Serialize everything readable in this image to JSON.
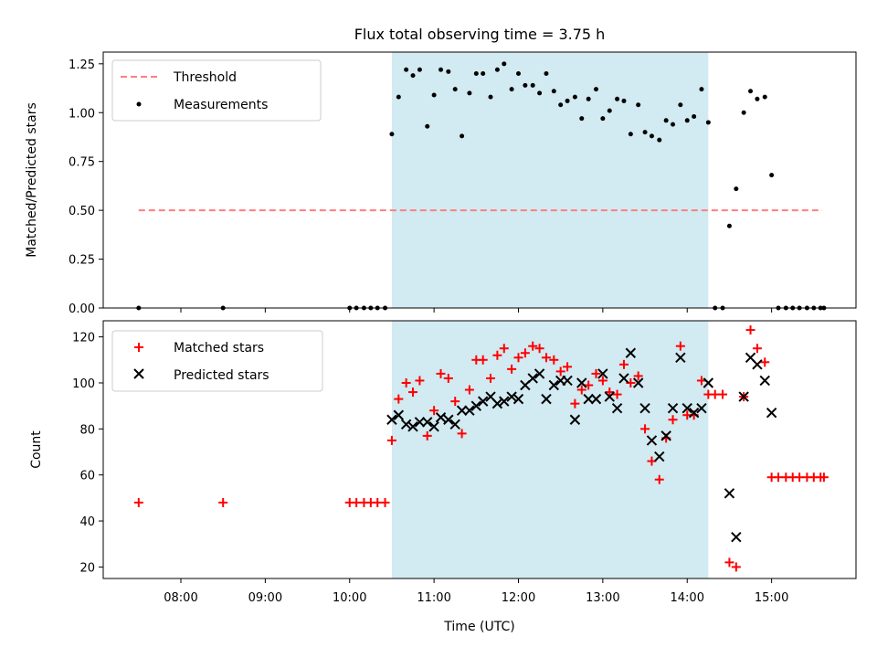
{
  "figure": {
    "title": "Flux total observing time = 3.75 h"
  },
  "colors": {
    "threshold": "#ff7f7f",
    "measurement": "#000000",
    "matched": "#ff0000",
    "predicted": "#000000",
    "span": "#add8e6"
  },
  "chart_data": [
    {
      "type": "scatter",
      "ylabel": "Matched/Predicted stars",
      "xlim": [
        7.08,
        16.0
      ],
      "ylim": [
        0,
        1.31
      ],
      "yticks": [
        0.0,
        0.25,
        0.5,
        0.75,
        1.0,
        1.25
      ],
      "ytick_labels": [
        "0.00",
        "0.25",
        "0.50",
        "0.75",
        "1.00",
        "1.25"
      ],
      "highlight_span": [
        10.5,
        14.25
      ],
      "legend": {
        "position": "top-left",
        "entries": [
          "Threshold",
          "Measurements"
        ]
      },
      "threshold": {
        "name": "Threshold",
        "y": 0.5,
        "x": [
          7.5,
          15.6
        ]
      },
      "series": [
        {
          "name": "Measurements",
          "marker": "dot",
          "x": [
            7.5,
            8.5,
            10.0,
            10.08,
            10.17,
            10.25,
            10.33,
            10.42,
            10.5,
            10.58,
            10.67,
            10.75,
            10.83,
            10.92,
            11.0,
            11.08,
            11.17,
            11.25,
            11.33,
            11.42,
            11.5,
            11.58,
            11.67,
            11.75,
            11.83,
            11.92,
            12.0,
            12.08,
            12.17,
            12.25,
            12.33,
            12.42,
            12.5,
            12.58,
            12.67,
            12.75,
            12.83,
            12.92,
            13.0,
            13.08,
            13.17,
            13.25,
            13.33,
            13.42,
            13.5,
            13.58,
            13.67,
            13.75,
            13.83,
            13.92,
            14.0,
            14.08,
            14.17,
            14.25,
            14.33,
            14.42,
            14.5,
            14.58,
            14.67,
            14.75,
            14.83,
            14.92,
            15.0,
            15.08,
            15.17,
            15.25,
            15.33,
            15.42,
            15.5,
            15.58,
            15.62
          ],
          "y": [
            0.0,
            0.0,
            0.0,
            0.0,
            0.0,
            0.0,
            0.0,
            0.0,
            0.89,
            1.08,
            1.22,
            1.19,
            1.22,
            0.93,
            1.09,
            1.22,
            1.21,
            1.12,
            0.88,
            1.1,
            1.2,
            1.2,
            1.08,
            1.22,
            1.25,
            1.12,
            1.2,
            1.14,
            1.14,
            1.1,
            1.2,
            1.11,
            1.04,
            1.06,
            1.08,
            0.97,
            1.07,
            1.12,
            0.97,
            1.01,
            1.07,
            1.06,
            0.89,
            1.04,
            0.9,
            0.88,
            0.86,
            0.96,
            0.94,
            1.04,
            0.96,
            0.98,
            1.12,
            0.95,
            0.0,
            0.0,
            0.42,
            0.61,
            1.0,
            1.11,
            1.07,
            1.08,
            0.68,
            0.0,
            0.0,
            0.0,
            0.0,
            0.0,
            0.0,
            0.0,
            0.0
          ]
        }
      ]
    },
    {
      "type": "scatter",
      "xlabel": "Time (UTC)",
      "ylabel": "Count",
      "xlim": [
        7.08,
        16.0
      ],
      "ylim": [
        15,
        127
      ],
      "xticks": [
        8,
        9,
        10,
        11,
        12,
        13,
        14,
        15
      ],
      "xtick_labels": [
        "08:00",
        "09:00",
        "10:00",
        "11:00",
        "12:00",
        "13:00",
        "14:00",
        "15:00"
      ],
      "yticks": [
        20,
        40,
        60,
        80,
        100,
        120
      ],
      "ytick_labels": [
        "20",
        "40",
        "60",
        "80",
        "100",
        "120"
      ],
      "highlight_span": [
        10.5,
        14.25
      ],
      "legend": {
        "position": "top-left",
        "entries": [
          "Matched stars",
          "Predicted stars"
        ]
      },
      "series": [
        {
          "name": "Matched stars",
          "marker": "plus",
          "x": [
            7.5,
            8.5,
            10.0,
            10.08,
            10.17,
            10.25,
            10.33,
            10.42,
            10.5,
            10.58,
            10.67,
            10.75,
            10.83,
            10.92,
            11.0,
            11.08,
            11.17,
            11.25,
            11.33,
            11.42,
            11.5,
            11.58,
            11.67,
            11.75,
            11.83,
            11.92,
            12.0,
            12.08,
            12.17,
            12.25,
            12.33,
            12.42,
            12.5,
            12.58,
            12.67,
            12.75,
            12.83,
            12.92,
            13.0,
            13.08,
            13.17,
            13.25,
            13.33,
            13.42,
            13.5,
            13.58,
            13.67,
            13.75,
            13.83,
            13.92,
            14.0,
            14.08,
            14.17,
            14.25,
            14.33,
            14.42,
            14.5,
            14.58,
            14.67,
            14.75,
            14.83,
            14.92,
            15.0,
            15.08,
            15.17,
            15.25,
            15.33,
            15.42,
            15.5,
            15.58,
            15.62
          ],
          "y": [
            48,
            48,
            48,
            48,
            48,
            48,
            48,
            48,
            75,
            93,
            100,
            96,
            101,
            77,
            88,
            104,
            102,
            92,
            78,
            97,
            110,
            110,
            102,
            112,
            115,
            106,
            111,
            113,
            116,
            115,
            111,
            110,
            105,
            107,
            91,
            97,
            99,
            104,
            101,
            96,
            95,
            108,
            100,
            103,
            80,
            66,
            58,
            76,
            84,
            116,
            86,
            86,
            101,
            95,
            95,
            95,
            22,
            20,
            94,
            123,
            115,
            109,
            59,
            59,
            59,
            59,
            59,
            59,
            59,
            59,
            59
          ]
        },
        {
          "name": "Predicted stars",
          "marker": "cross",
          "x": [
            10.5,
            10.58,
            10.67,
            10.75,
            10.83,
            10.92,
            11.0,
            11.08,
            11.17,
            11.25,
            11.33,
            11.42,
            11.5,
            11.58,
            11.67,
            11.75,
            11.83,
            11.92,
            12.0,
            12.08,
            12.17,
            12.25,
            12.33,
            12.42,
            12.5,
            12.58,
            12.67,
            12.75,
            12.83,
            12.92,
            13.0,
            13.08,
            13.17,
            13.25,
            13.33,
            13.42,
            13.5,
            13.58,
            13.67,
            13.75,
            13.83,
            13.92,
            14.0,
            14.08,
            14.17,
            14.25,
            14.5,
            14.58,
            14.67,
            14.75,
            14.83,
            14.92,
            15.0
          ],
          "y": [
            84,
            86,
            82,
            81,
            83,
            83,
            81,
            85,
            84,
            82,
            88,
            88,
            90,
            92,
            94,
            91,
            92,
            94,
            93,
            99,
            102,
            104,
            93,
            99,
            101,
            101,
            84,
            100,
            93,
            93,
            104,
            94,
            89,
            102,
            113,
            100,
            89,
            75,
            68,
            77,
            89,
            111,
            89,
            87,
            89,
            100,
            52,
            33,
            94,
            111,
            108,
            101,
            87
          ]
        }
      ]
    }
  ]
}
